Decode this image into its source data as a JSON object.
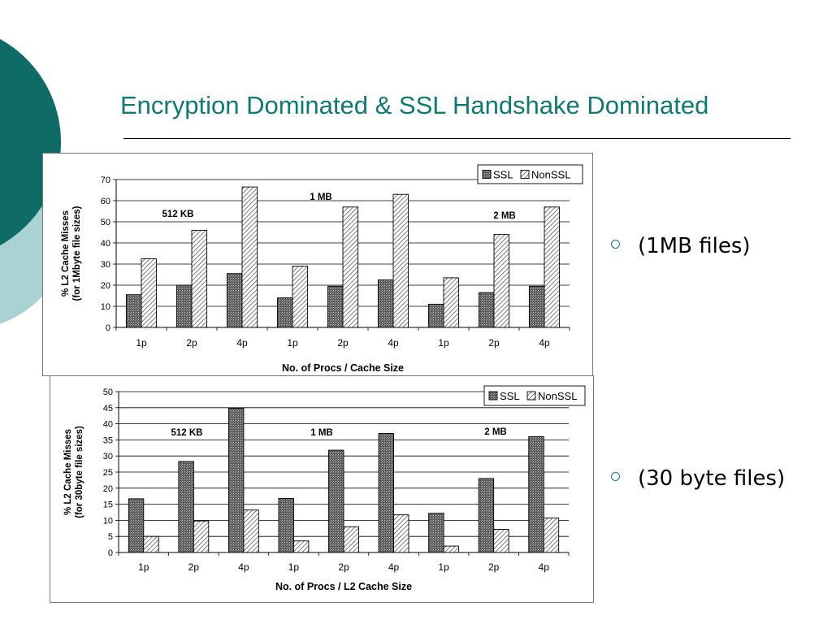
{
  "slide": {
    "title": "Encryption Dominated & SSL Handshake Dominated",
    "accent_color": "#0f6b66",
    "accent_light_color": "#a9d3d2",
    "title_color": "#0f7a72"
  },
  "bullets": [
    {
      "icon": "circle-bullet-icon",
      "text": "(1MB files)"
    },
    {
      "icon": "circle-bullet-icon",
      "text": "(30 byte files)"
    }
  ],
  "chart_data": [
    {
      "type": "bar",
      "categories": [
        "1p",
        "2p",
        "4p",
        "1p",
        "2p",
        "4p",
        "1p",
        "2p",
        "4p"
      ],
      "series": [
        {
          "name": "SSL",
          "values": [
            15.5,
            20,
            25.5,
            14,
            19.5,
            22.5,
            11,
            16.5,
            19.5
          ]
        },
        {
          "name": "NonSSL",
          "values": [
            32.5,
            46,
            66.5,
            29,
            57,
            63,
            23.5,
            44,
            57
          ]
        }
      ],
      "group_labels": [
        "512 KB",
        "1 MB",
        "2 MB"
      ],
      "xlabel": "No. of Procs / Cache Size",
      "ylabel": [
        "% L2 Cache Misses",
        "(for 1Mbyte file sizes)"
      ],
      "ylim": [
        0,
        70
      ],
      "yticks": [
        0,
        10,
        20,
        30,
        40,
        50,
        60,
        70
      ],
      "grid": true,
      "legend": "top-right"
    },
    {
      "type": "bar",
      "categories": [
        "1p",
        "2p",
        "4p",
        "1p",
        "2p",
        "4p",
        "1p",
        "2p",
        "4p"
      ],
      "series": [
        {
          "name": "SSL",
          "values": [
            16.7,
            28.3,
            44.8,
            16.8,
            31.8,
            37,
            12.2,
            23,
            36
          ]
        },
        {
          "name": "NonSSL",
          "values": [
            5,
            9.8,
            13.2,
            3.6,
            8,
            11.7,
            2,
            7.2,
            10.7
          ]
        }
      ],
      "group_labels": [
        "512 KB",
        "1 MB",
        "2 MB"
      ],
      "xlabel": "No. of Procs / L2 Cache Size",
      "ylabel": [
        "% L2 Cache Misses",
        "(for 30byte file sizes)"
      ],
      "ylim": [
        0,
        50
      ],
      "yticks": [
        0,
        5,
        10,
        15,
        20,
        25,
        30,
        35,
        40,
        45,
        50
      ],
      "grid": true,
      "legend": "top-right"
    }
  ]
}
